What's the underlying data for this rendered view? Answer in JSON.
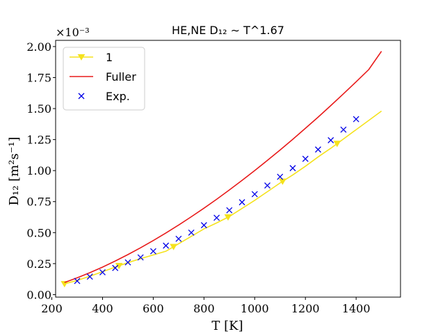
{
  "chart_data": {
    "type": "line",
    "title": "HE,NE D₁₂ ∼ T^1.67",
    "xlabel": "T [K]",
    "ylabel": "D₁₂ [m²s⁻¹]",
    "y_scale_label": "×10⁻³",
    "xlim": [
      215,
      1575
    ],
    "ylim": [
      -0.02,
      2.05
    ],
    "xticks": [
      200,
      400,
      600,
      800,
      1000,
      1200,
      1400
    ],
    "yticks": [
      0.0,
      0.25,
      0.5,
      0.75,
      1.0,
      1.25,
      1.5,
      1.75,
      2.0
    ],
    "ytick_labels": [
      "0.00",
      "0.25",
      "0.50",
      "0.75",
      "1.00",
      "1.25",
      "1.50",
      "1.75",
      "2.00"
    ],
    "grid": false,
    "legend_position": "top-left",
    "series": [
      {
        "name": "1",
        "style": "line-with-triangle-markers",
        "color": "#f5e21d",
        "x": [
          250,
          300,
          350,
          400,
          450,
          500,
          550,
          600,
          650,
          700,
          750,
          800,
          850,
          900,
          950,
          1000,
          1050,
          1100,
          1150,
          1200,
          1250,
          1300,
          1350,
          1400,
          1450,
          1500
        ],
        "y": [
          0.087,
          0.115,
          0.148,
          0.185,
          0.222,
          0.258,
          0.29,
          0.32,
          0.35,
          0.41,
          0.47,
          0.53,
          0.578,
          0.63,
          0.695,
          0.76,
          0.83,
          0.9,
          0.965,
          1.035,
          1.11,
          1.18,
          1.255,
          1.33,
          1.405,
          1.48
        ],
        "marker_x": [
          250,
          465,
          680,
          895,
          1110,
          1325
        ]
      },
      {
        "name": "Fuller",
        "style": "line",
        "color": "#e81a1a",
        "x": [
          250,
          300,
          350,
          400,
          450,
          500,
          550,
          600,
          650,
          700,
          750,
          800,
          850,
          900,
          950,
          1000,
          1050,
          1100,
          1150,
          1200,
          1250,
          1300,
          1350,
          1400,
          1450,
          1500
        ],
        "y": [
          0.098,
          0.136,
          0.177,
          0.222,
          0.271,
          0.323,
          0.378,
          0.436,
          0.497,
          0.561,
          0.628,
          0.697,
          0.769,
          0.844,
          0.921,
          1.0,
          1.082,
          1.166,
          1.252,
          1.341,
          1.431,
          1.524,
          1.619,
          1.716,
          1.815,
          1.962
        ]
      },
      {
        "name": "Exp.",
        "style": "x-markers",
        "color": "#0000e6",
        "x": [
          300,
          350,
          400,
          450,
          500,
          550,
          600,
          650,
          700,
          750,
          800,
          850,
          900,
          950,
          1000,
          1050,
          1100,
          1150,
          1200,
          1250,
          1300,
          1350,
          1400
        ],
        "y": [
          0.11,
          0.145,
          0.18,
          0.215,
          0.26,
          0.3,
          0.35,
          0.395,
          0.45,
          0.5,
          0.56,
          0.62,
          0.68,
          0.745,
          0.81,
          0.88,
          0.95,
          1.02,
          1.095,
          1.17,
          1.245,
          1.33,
          1.415
        ]
      }
    ]
  }
}
